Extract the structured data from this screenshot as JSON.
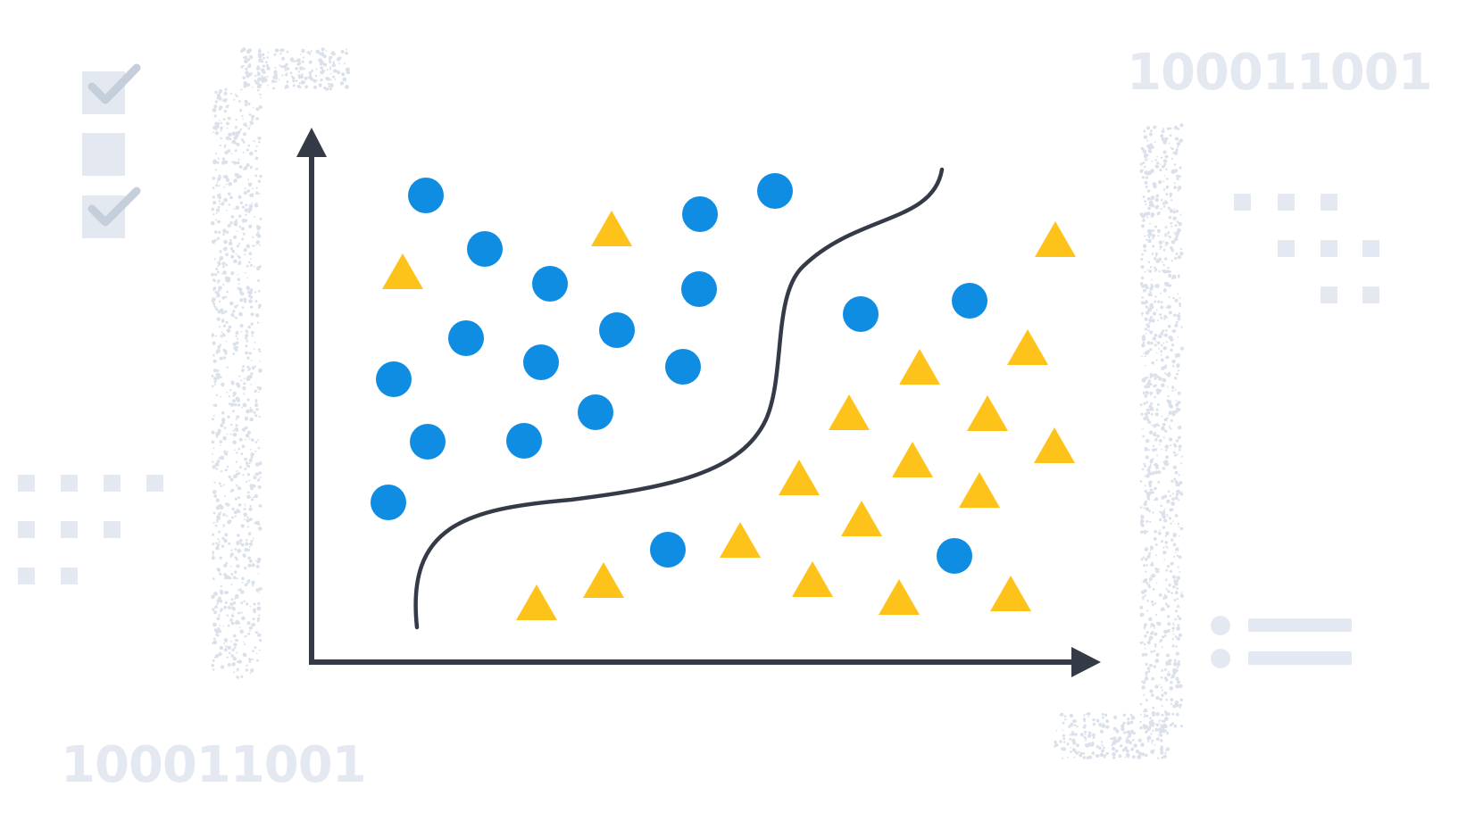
{
  "decorations": {
    "binary_top": "100011001",
    "binary_bottom": "100011001"
  },
  "colors": {
    "circle": "#0f8de3",
    "triangle": "#fec31b",
    "axis": "#343a46",
    "decor": "#e4e9f1",
    "decor_check": "#c5cedb"
  },
  "icons": {
    "checklist": "checklist-icon",
    "arrow_x": "arrow-right-icon",
    "arrow_y": "arrow-up-icon",
    "list": "list-icon"
  },
  "chart_data": {
    "type": "scatter",
    "title": "",
    "xlabel": "",
    "ylabel": "",
    "grid": false,
    "series": [
      {
        "marker": "circle",
        "points": [
          [
            477,
            219
          ],
          [
            543,
            279
          ],
          [
            616,
            318
          ],
          [
            522,
            379
          ],
          [
            606,
            406
          ],
          [
            691,
            370
          ],
          [
            441,
            425
          ],
          [
            479,
            495
          ],
          [
            587,
            494
          ],
          [
            667,
            462
          ],
          [
            435,
            563
          ],
          [
            784,
            240
          ],
          [
            868,
            214
          ],
          [
            783,
            324
          ],
          [
            765,
            411
          ],
          [
            964,
            352
          ],
          [
            1086,
            337
          ],
          [
            748,
            616
          ],
          [
            1069,
            623
          ]
        ]
      },
      {
        "marker": "triangle",
        "points": [
          [
            451,
            304
          ],
          [
            685,
            256
          ],
          [
            1182,
            268
          ],
          [
            1151,
            389
          ],
          [
            1030,
            411
          ],
          [
            951,
            462
          ],
          [
            1106,
            463
          ],
          [
            1181,
            499
          ],
          [
            1022,
            515
          ],
          [
            895,
            535
          ],
          [
            1097,
            549
          ],
          [
            965,
            581
          ],
          [
            829,
            605
          ],
          [
            676,
            650
          ],
          [
            910,
            649
          ],
          [
            1132,
            665
          ],
          [
            1007,
            669
          ],
          [
            601,
            675
          ]
        ]
      }
    ],
    "decision_boundary": "S-curve separating circles (upper-left) from triangles (lower-right)"
  }
}
